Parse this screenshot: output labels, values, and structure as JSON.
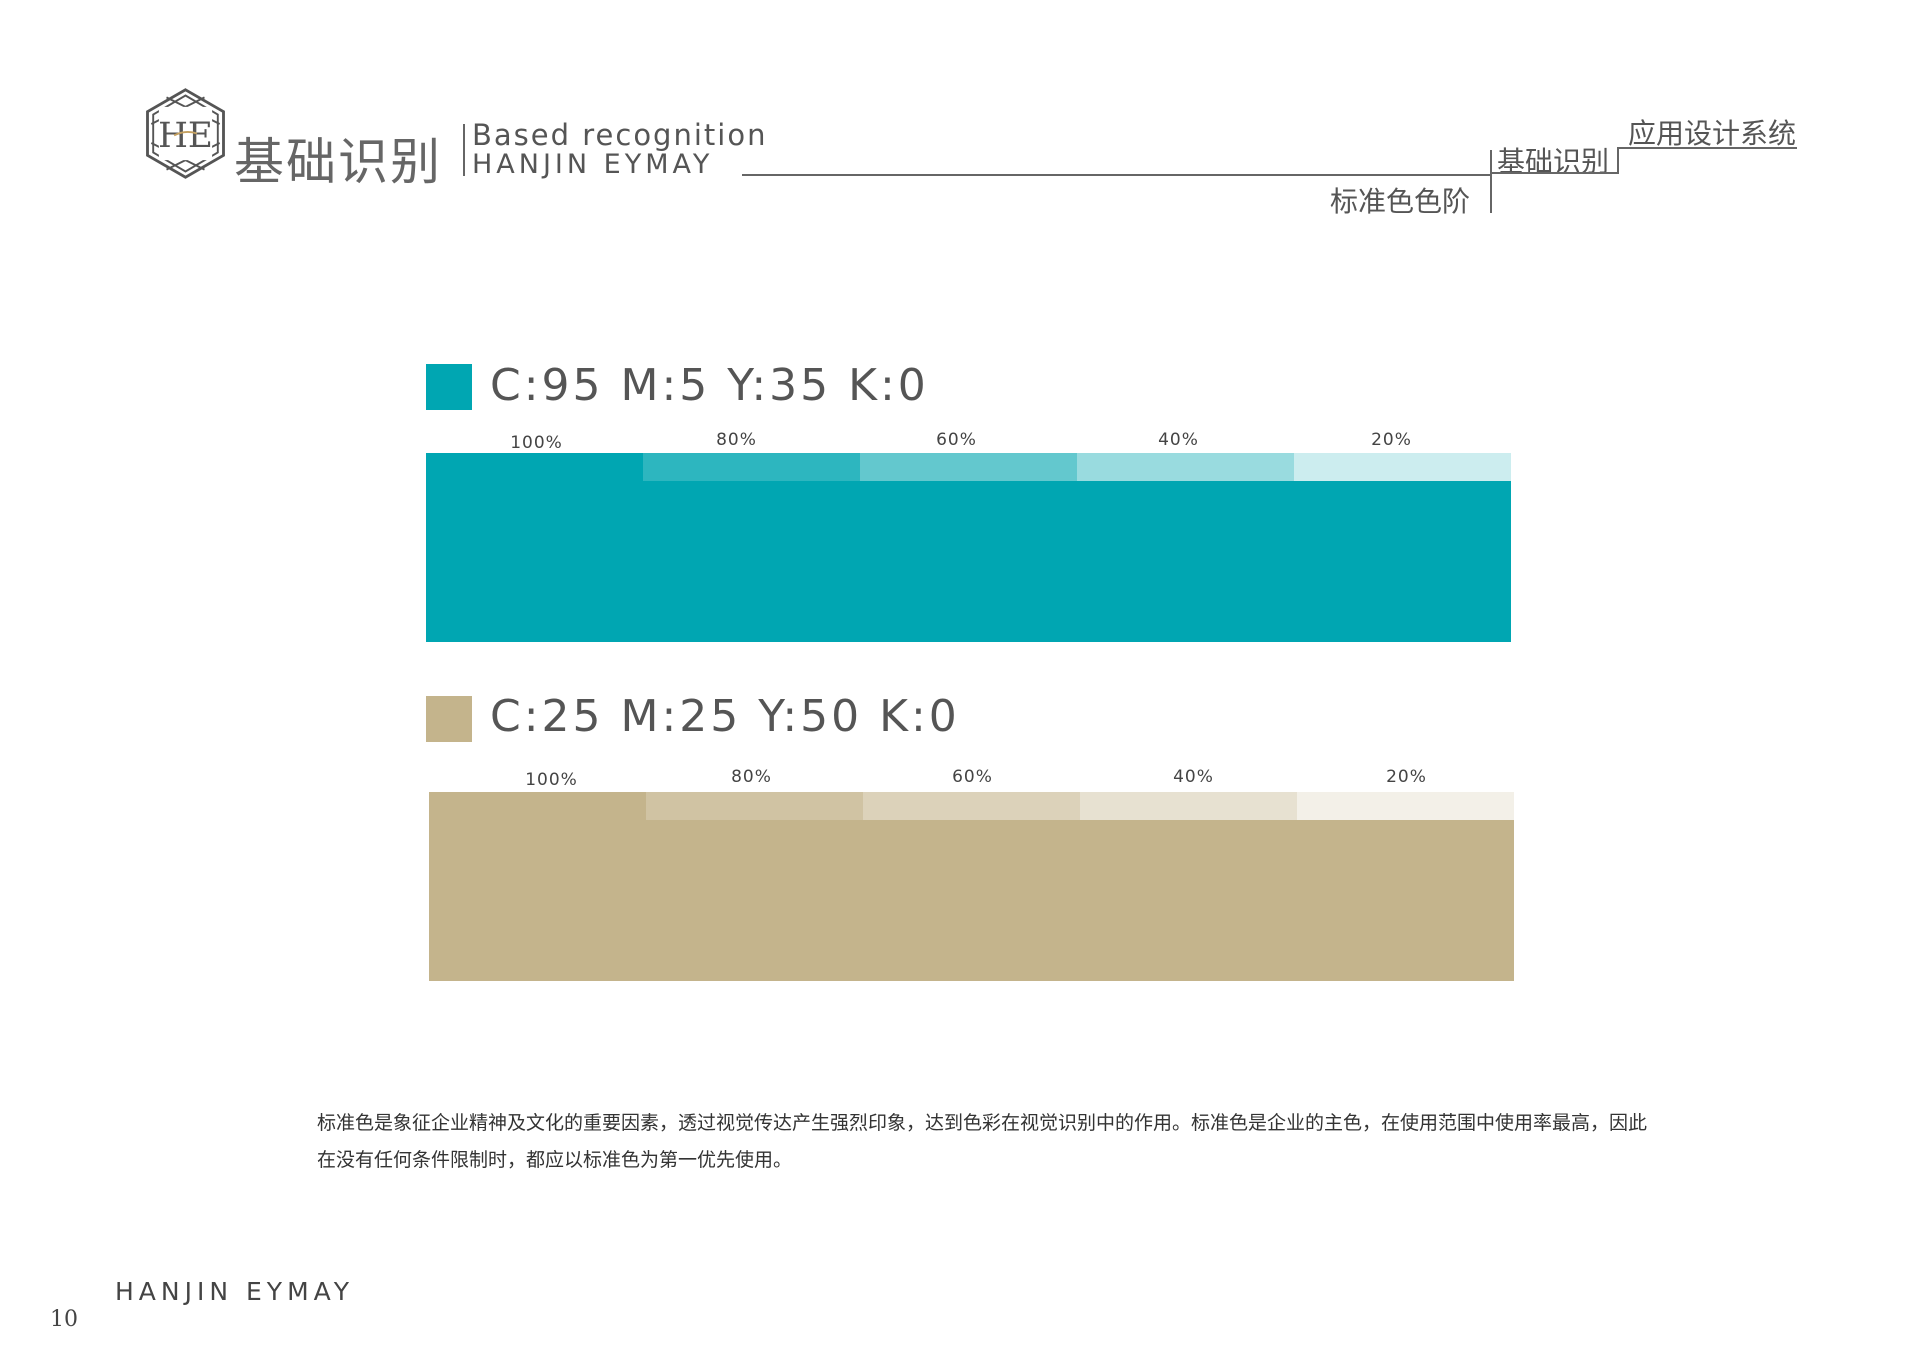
{
  "header": {
    "logo_text": "HE",
    "title_cn": "基础识别",
    "title_en": "Based recognition",
    "brand": "HANJIN EYMAY"
  },
  "breadcrumb": {
    "level1": "应用设计系统",
    "level2": "基础识别",
    "level3": "标准色色阶"
  },
  "colors": [
    {
      "cmyk": "C:95 M:5 Y:35 K:0",
      "base": "#00A6B2",
      "tints": [
        {
          "label": "100%",
          "color": "#00A6B2"
        },
        {
          "label": "80%",
          "color": "#2DB6BF"
        },
        {
          "label": "60%",
          "color": "#63C8CE"
        },
        {
          "label": "40%",
          "color": "#99DBDF"
        },
        {
          "label": "20%",
          "color": "#CCEDEF"
        }
      ]
    },
    {
      "cmyk": "C:25 M:25 Y:50 K:0",
      "base": "#C4B48C",
      "tints": [
        {
          "label": "100%",
          "color": "#C4B48C"
        },
        {
          "label": "80%",
          "color": "#D0C3A3"
        },
        {
          "label": "60%",
          "color": "#DCD2BA"
        },
        {
          "label": "40%",
          "color": "#E7E1D1"
        },
        {
          "label": "20%",
          "color": "#F3F0E8"
        }
      ]
    }
  ],
  "description": "标准色是象征企业精神及文化的重要因素，透过视觉传达产生强烈印象，达到色彩在视觉识别中的作用。标准色是企业的主色，在使用范围中使用率最高，因此在没有任何条件限制时，都应以标准色为第一优先使用。",
  "footer": {
    "brand": "HANJIN EYMAY",
    "page_number": "10"
  }
}
